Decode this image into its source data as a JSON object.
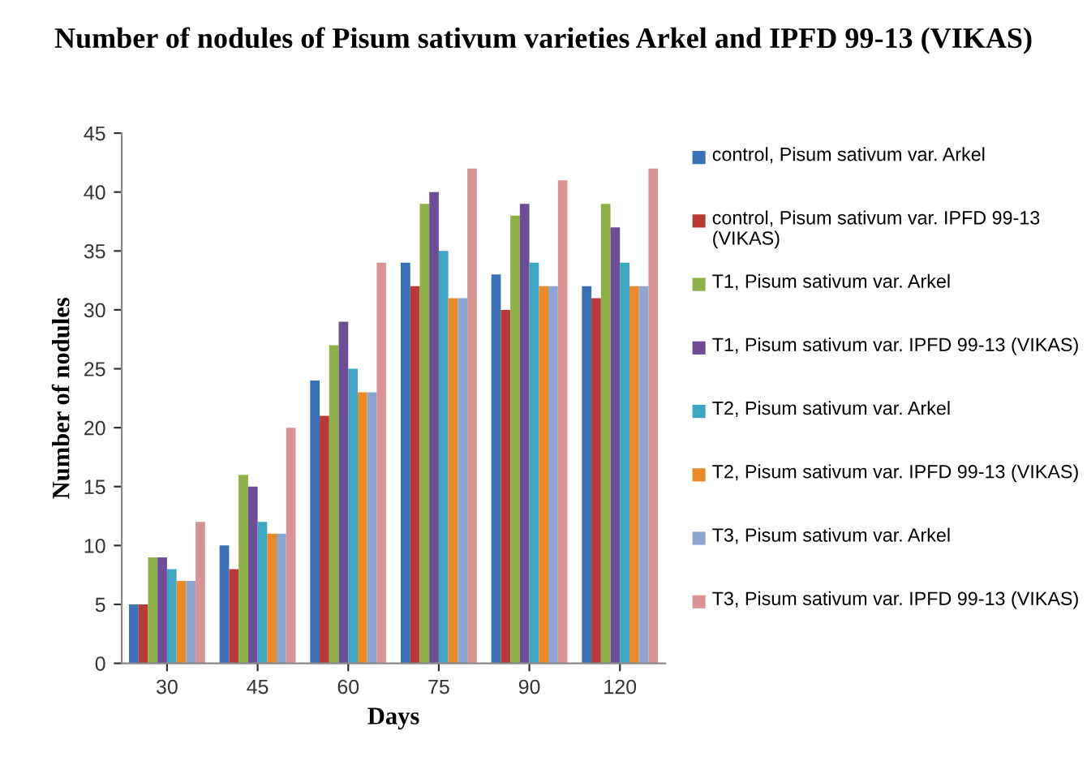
{
  "chart_data": {
    "type": "bar",
    "title": "Number of nodules of Pisum sativum varieties Arkel and IPFD 99-13 (VIKAS)",
    "xlabel": "Days",
    "ylabel": "Number of nodules",
    "categories": [
      "30",
      "45",
      "60",
      "75",
      "90",
      "120"
    ],
    "series": [
      {
        "name": "control, Pisum sativum var. Arkel",
        "color": "#3b6fb6",
        "values": [
          5,
          10,
          24,
          34,
          33,
          32
        ]
      },
      {
        "name": "control, Pisum sativum var. IPFD 99-13 (VIKAS)",
        "color": "#b73a37",
        "values": [
          5,
          8,
          21,
          32,
          30,
          31
        ]
      },
      {
        "name": "T1, Pisum sativum var. Arkel",
        "color": "#8db048",
        "values": [
          9,
          16,
          27,
          39,
          38,
          39
        ]
      },
      {
        "name": "T1, Pisum sativum var. IPFD 99-13 (VIKAS)",
        "color": "#6d4e96",
        "values": [
          9,
          15,
          29,
          40,
          39,
          37
        ]
      },
      {
        "name": "T2, Pisum sativum var. Arkel",
        "color": "#3fa6c2",
        "values": [
          8,
          12,
          25,
          35,
          34,
          34
        ]
      },
      {
        "name": "T2, Pisum sativum var. IPFD 99-13 (VIKAS)",
        "color": "#e98a2a",
        "values": [
          7,
          11,
          23,
          31,
          32,
          32
        ]
      },
      {
        "name": "T3, Pisum sativum var. Arkel",
        "color": "#8ea5cf",
        "values": [
          7,
          11,
          23,
          31,
          32,
          32
        ]
      },
      {
        "name": "T3, Pisum sativum var. IPFD 99-13 (VIKAS)",
        "color": "#d69594",
        "values": [
          12,
          20,
          34,
          42,
          41,
          42
        ]
      }
    ],
    "ylim": [
      0,
      45
    ],
    "yticks": [
      0,
      5,
      10,
      15,
      20,
      25,
      30,
      35,
      40,
      45
    ],
    "grid": false,
    "legend": "right"
  }
}
